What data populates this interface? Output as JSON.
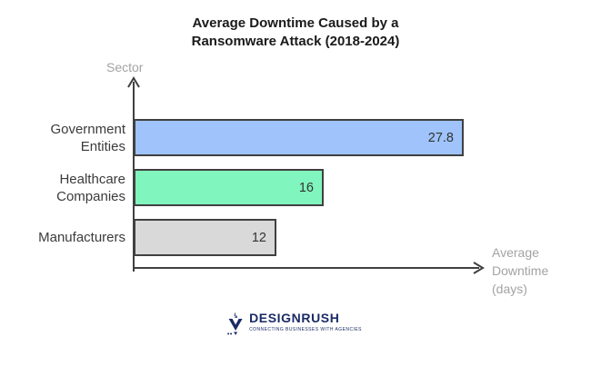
{
  "chart_data": {
    "type": "bar",
    "orientation": "horizontal",
    "title": "Average Downtime Caused by a Ransomware Attack (2018-2024)",
    "categories": [
      "Government Entities",
      "Healthcare Companies",
      "Manufacturers"
    ],
    "values": [
      27.8,
      16,
      12
    ],
    "value_labels": [
      "27.8",
      "16",
      "12"
    ],
    "xlabel": "Average Downtime (days)",
    "ylabel": "Sector",
    "xlim": [
      0,
      29
    ],
    "grid": false,
    "legend": false,
    "bar_colors": [
      "#9fc3fa",
      "#80f5bd",
      "#d9d9d9"
    ],
    "bar_border_color": "#404040",
    "axis_color": "#404040",
    "axis_label_color": "#a3a3a3",
    "value_label_color": "#333333"
  },
  "footer": {
    "logo_text": "DESIGNRUSH",
    "tagline": "CONNECTING BUSINESSES WITH AGENCIES",
    "logo_color": "#1b2a66"
  }
}
